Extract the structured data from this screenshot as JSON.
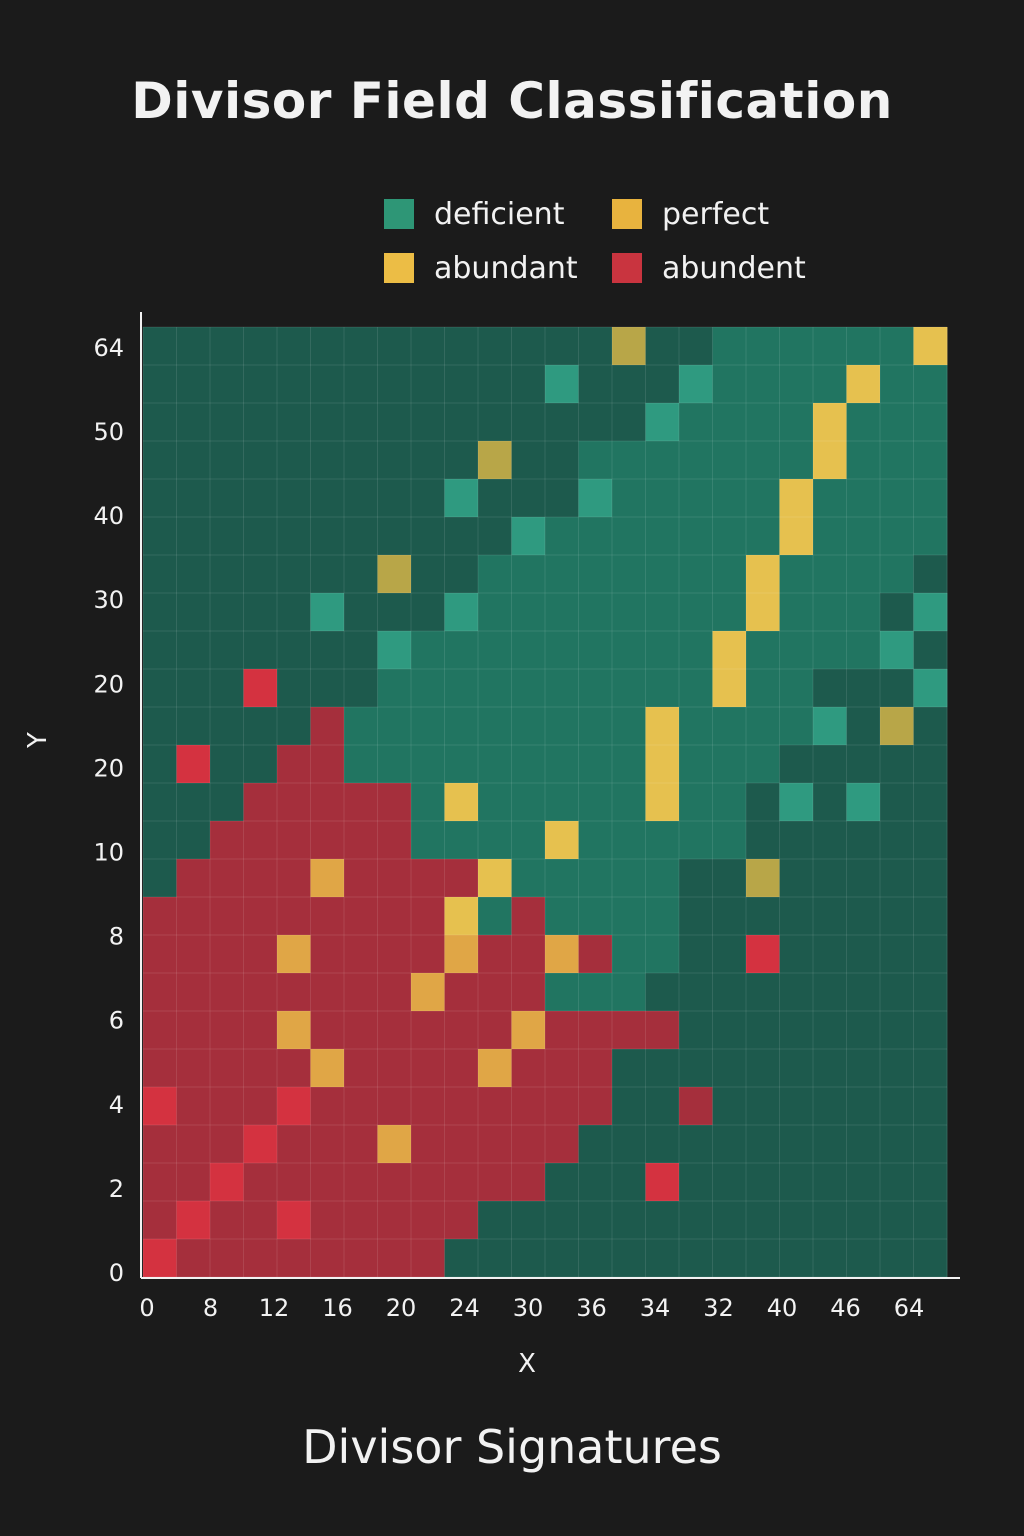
{
  "chart_data": {
    "type": "heatmap",
    "title": "Divisor Field Classification",
    "subtitle": "Divisor Signatures",
    "xlabel": "X",
    "ylabel": "Y",
    "x_tick_labels": [
      "0",
      "8",
      "12",
      "16",
      "20",
      "24",
      "30",
      "36",
      "34",
      "32",
      "40",
      "46",
      "64"
    ],
    "y_tick_labels": [
      "0",
      "2",
      "4",
      "6",
      "8",
      "10",
      "20",
      "20",
      "30",
      "40",
      "50",
      "64"
    ],
    "legend": [
      {
        "label": "deficient",
        "color": "#2e9676"
      },
      {
        "label": "perfect",
        "color": "#e8b33e"
      },
      {
        "label": "abundant",
        "color": "#ecbd45"
      },
      {
        "label": "abundent",
        "color": "#c9343f"
      }
    ],
    "legend_placement": "top",
    "grid": true,
    "colors": {
      "D": "#1d5a4d",
      "d": "#217561",
      "T": "#2f9a80",
      "R": "#a52f3c",
      "B": "#d43240",
      "Y": "#e6c14f",
      "O": "#e0a646",
      "K": "#b8a648"
    },
    "color_key": {
      "D": "deficient (dark)",
      "d": "deficient",
      "T": "deficient (light)",
      "R": "abundant",
      "B": "abundant (bright)",
      "Y": "perfect",
      "O": "abundant",
      "K": "perfect (olive)"
    },
    "rows": [
      "DDDDDDDDDDDDDDKDDddddddY",
      "DDDDDDDDDDDDTDDDTddddYdd",
      "DDDDDDDDDDDDDDDTddddYddd",
      "DDDDDDDDDDKDDdddddddYddd",
      "DDDDDDDDDTDDDTdddddYdddd",
      "DDDDDDDDDDDTdddddddYdddd",
      "DDDDDDDKDDddddddddYddddD",
      "DDDDDTDDDTddddddddYdddDT",
      "DDDDDDDTdddddddddYddddTD",
      "DDDBDDDddddddddddYddDDDT",
      "DDDDDRdddddddddYddddTDKD",
      "DBDDRRdddddddddYdddDDDDD",
      "DDDRRRRRdYdddddYddDTDTDD",
      "DDRRRRRRddddYdddddDDDDDD",
      "DRRRRORRRRYdddddDDKDDDDD",
      "RRRRRRRRRYdRddddDDDDDDDD",
      "RRRRORRRRORRORddDDBDDDDD",
      "RRRRRRRRORRRdddDDDDDDDDD",
      "RRRRORRRRRRORRRRDDDDDDDD",
      "RRRRRORRRRORRRDDDDDDDDDD",
      "BRRRBRRRRRRRRRDDRDDDDDDD",
      "RRRBRRRORRRRRDDDDDDDDDDD",
      "RRBRRRRRRRRRDDDBDDDDDDDD",
      "RBRRBRRRRRDDDDDDDDDDDDDD",
      "BRRRRRRRRDDDDDDDDDDDDDDD"
    ]
  }
}
